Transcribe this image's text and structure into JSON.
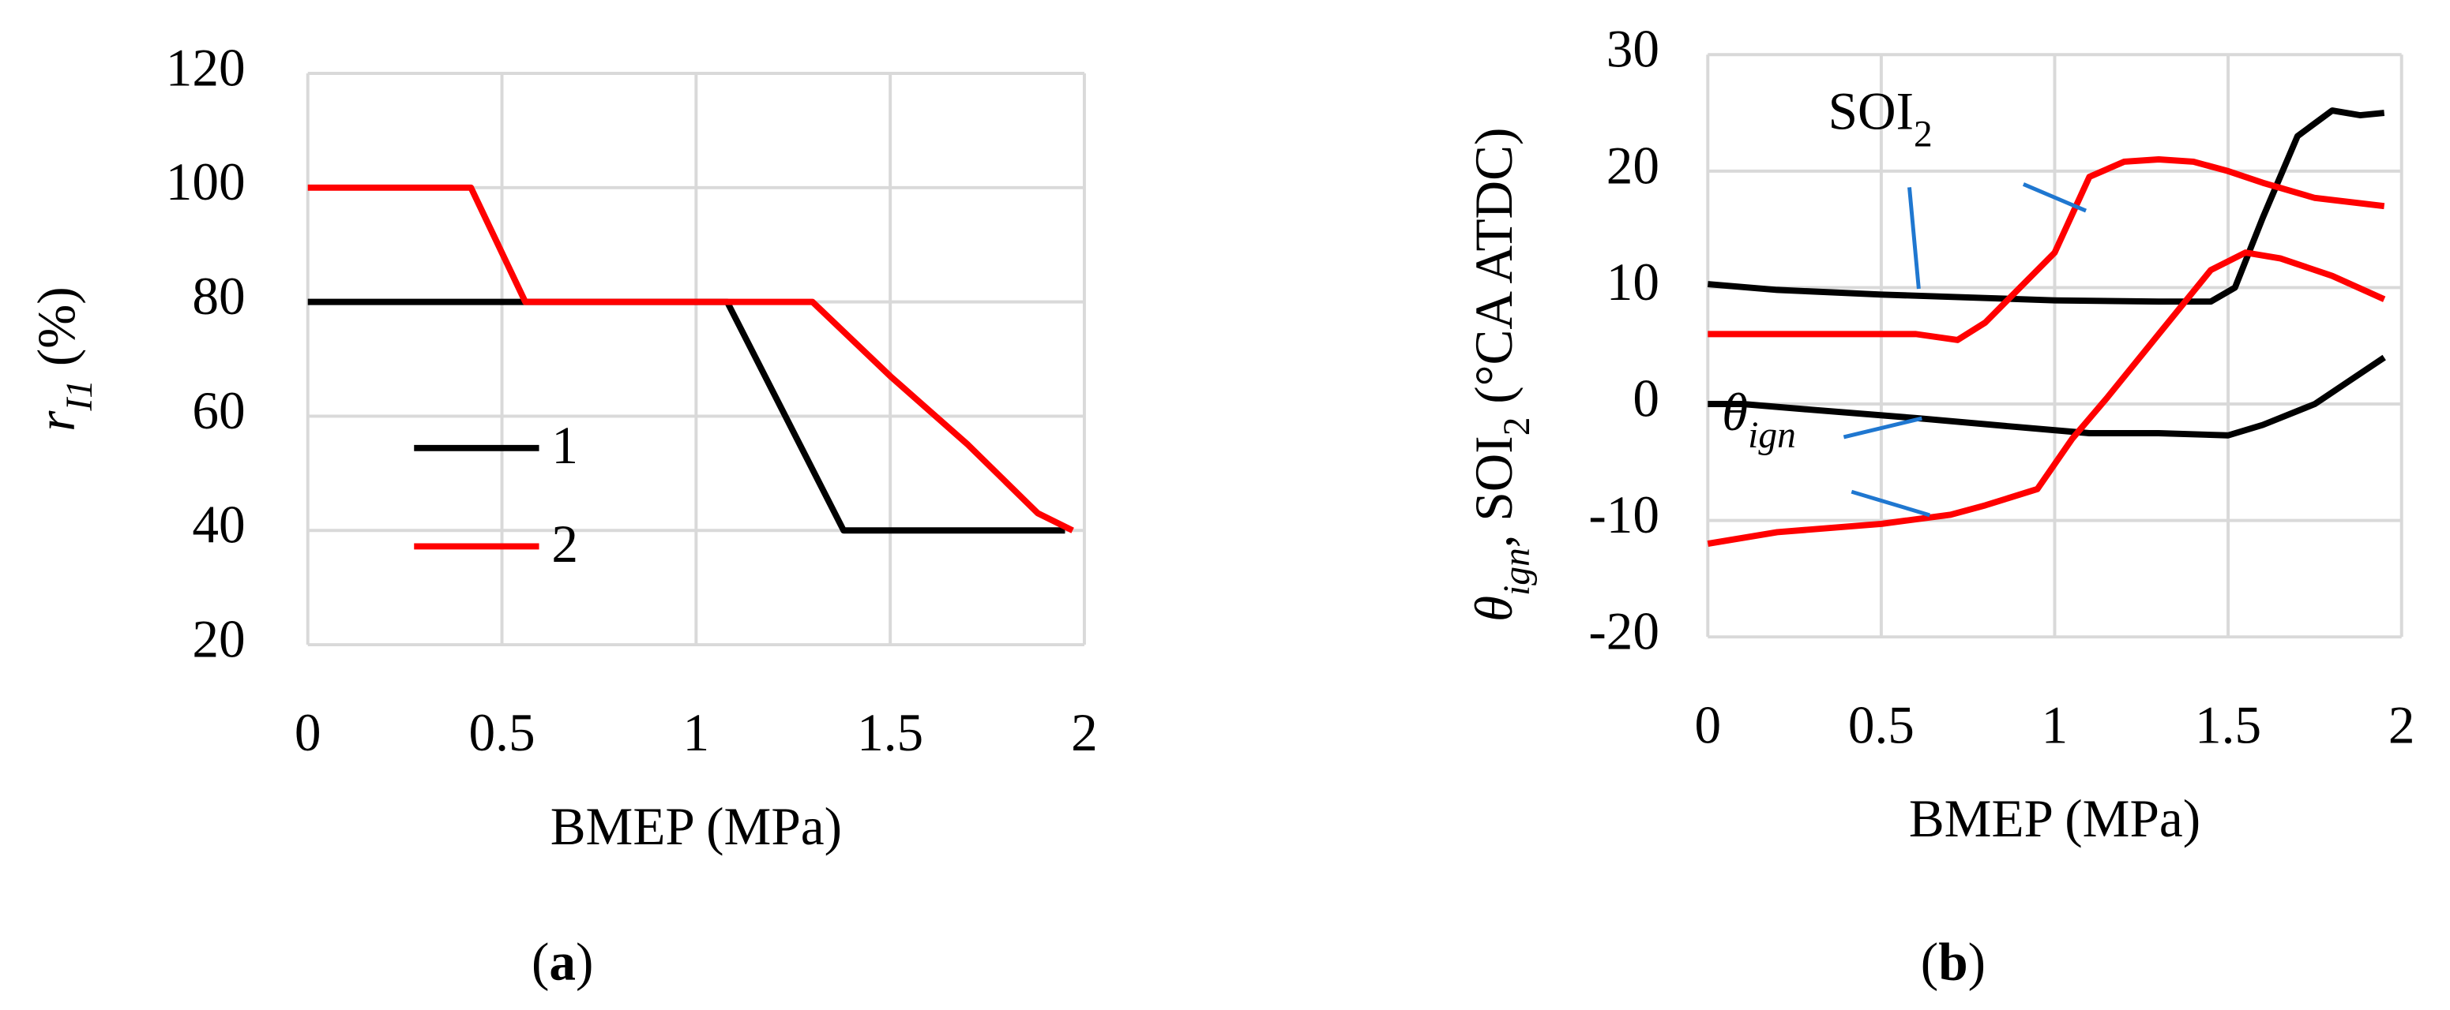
{
  "chart_data": [
    {
      "type": "line",
      "ylabel": [
        "r",
        "I1",
        " (%)"
      ],
      "xlabel": "BMEP (MPa)",
      "caption": [
        "(",
        "a",
        ")"
      ],
      "xlim": [
        0,
        2
      ],
      "xticks": [
        0,
        0.5,
        1,
        1.5,
        2
      ],
      "ylim": [
        20,
        120
      ],
      "yticks": [
        20,
        40,
        60,
        80,
        100,
        120
      ],
      "grid": true,
      "legend": "left",
      "series": [
        {
          "name": "1",
          "color": "#000000",
          "x": [
            0,
            0.55,
            1.08,
            1.38,
            1.95
          ],
          "values": [
            80,
            80,
            80,
            40,
            40
          ]
        },
        {
          "name": "2",
          "color": "#ff0000",
          "x": [
            0,
            0.42,
            0.56,
            1.3,
            1.5,
            1.7,
            1.88,
            1.97
          ],
          "values": [
            100,
            100,
            80,
            80,
            67,
            55,
            43,
            40
          ]
        }
      ]
    },
    {
      "type": "line",
      "ylabel": [
        "θ",
        "ign",
        ", SOI",
        "2",
        " (°CA ATDC)"
      ],
      "xlabel": "BMEP (MPa)",
      "caption": [
        "(",
        "b",
        ")"
      ],
      "xlim": [
        0,
        2
      ],
      "xticks": [
        0,
        0.5,
        1,
        1.5,
        2
      ],
      "ylim": [
        -20,
        30
      ],
      "yticks": [
        -20,
        -10,
        0,
        10,
        20,
        30
      ],
      "grid": true,
      "annotations": [
        {
          "text": [
            "SOI",
            "2"
          ]
        },
        {
          "text": [
            "θ",
            "ign"
          ]
        }
      ],
      "series": [
        {
          "color": "#000000",
          "x": [
            0,
            0.2,
            0.5,
            0.8,
            1,
            1.3,
            1.45,
            1.52,
            1.6,
            1.7,
            1.8,
            1.88,
            1.95
          ],
          "values": [
            10.3,
            9.8,
            9.4,
            9.1,
            8.9,
            8.8,
            8.8,
            10,
            16,
            23,
            25.2,
            24.8,
            25
          ]
        },
        {
          "color": "#ff0000",
          "x": [
            0,
            0.3,
            0.6,
            0.72,
            0.8,
            0.9,
            1,
            1.1,
            1.2,
            1.3,
            1.4,
            1.5,
            1.6,
            1.75,
            1.95
          ],
          "values": [
            6,
            6,
            6,
            5.5,
            7,
            10,
            13,
            19.5,
            20.8,
            21,
            20.8,
            20,
            19,
            17.7,
            17
          ]
        },
        {
          "color": "#000000",
          "x": [
            0,
            0.1,
            0.3,
            0.6,
            0.9,
            1.1,
            1.3,
            1.5,
            1.6,
            1.75,
            1.85,
            1.95
          ],
          "values": [
            0,
            0,
            -0.5,
            -1.2,
            -2,
            -2.5,
            -2.5,
            -2.7,
            -1.8,
            0,
            2,
            4
          ]
        },
        {
          "color": "#ff0000",
          "x": [
            0,
            0.2,
            0.5,
            0.7,
            0.8,
            0.95,
            1.05,
            1.15,
            1.3,
            1.45,
            1.55,
            1.65,
            1.8,
            1.95
          ],
          "values": [
            -12,
            -11,
            -10.3,
            -9.5,
            -8.7,
            -7.3,
            -3,
            0.5,
            6,
            11.5,
            13,
            12.5,
            11,
            9
          ]
        }
      ]
    }
  ]
}
